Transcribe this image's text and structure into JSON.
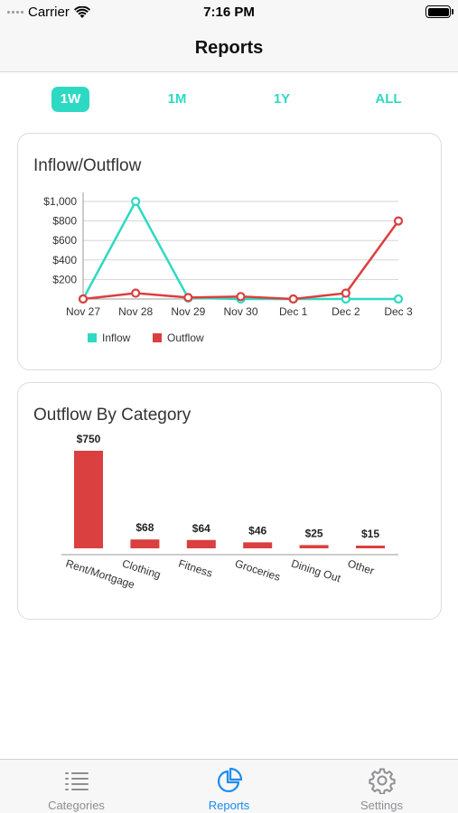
{
  "status_bar": {
    "carrier": "Carrier",
    "time": "7:16 PM"
  },
  "nav": {
    "title": "Reports"
  },
  "periods": [
    {
      "label": "1W",
      "active": true
    },
    {
      "label": "1M",
      "active": false
    },
    {
      "label": "1Y",
      "active": false
    },
    {
      "label": "ALL",
      "active": false
    }
  ],
  "colors": {
    "accent": "#2ed9c3",
    "inflow": "#2ed9c3",
    "outflow": "#d9403f",
    "tab_active": "#1a8cf0",
    "tab_inactive": "#8e8e93"
  },
  "line_card": {
    "title": "Inflow/Outflow"
  },
  "bar_card": {
    "title": "Outflow By Category"
  },
  "chart_data": [
    {
      "type": "line",
      "title": "Inflow/Outflow",
      "x": [
        "Nov 27",
        "Nov 28",
        "Nov 29",
        "Nov 30",
        "Dec 1",
        "Dec 2",
        "Dec 3"
      ],
      "ylim": [
        0,
        1000
      ],
      "yticks": [
        200,
        400,
        600,
        800,
        1000
      ],
      "ytick_labels": [
        "$200",
        "$400",
        "$600",
        "$800",
        "$1,000"
      ],
      "grid": true,
      "legend": "bottom-left",
      "series": [
        {
          "name": "Inflow",
          "color": "#2ed9c3",
          "values": [
            0,
            1000,
            10,
            0,
            0,
            0,
            0
          ]
        },
        {
          "name": "Outflow",
          "color": "#d9403f",
          "values": [
            0,
            60,
            15,
            25,
            0,
            60,
            800
          ]
        }
      ]
    },
    {
      "type": "bar",
      "title": "Outflow By Category",
      "categories": [
        "Rent/Mortgage",
        "Clothing",
        "Fitness",
        "Groceries",
        "Dining Out",
        "Other"
      ],
      "values": [
        750,
        68,
        64,
        46,
        25,
        15
      ],
      "value_labels": [
        "$750",
        "$68",
        "$64",
        "$46",
        "$25",
        "$15"
      ],
      "color": "#d9403f"
    }
  ],
  "tabs": [
    {
      "label": "Categories",
      "icon": "list-icon",
      "active": false
    },
    {
      "label": "Reports",
      "icon": "pie-chart-icon",
      "active": true
    },
    {
      "label": "Settings",
      "icon": "gear-icon",
      "active": false
    }
  ]
}
